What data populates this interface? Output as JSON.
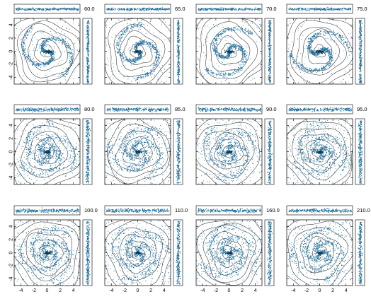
{
  "figure": {
    "panels": [
      {
        "label": "60.0"
      },
      {
        "label": "65.0"
      },
      {
        "label": "70.0"
      },
      {
        "label": "75.0"
      },
      {
        "label": "80.0"
      },
      {
        "label": "85.0"
      },
      {
        "label": "90.0"
      },
      {
        "label": "95.0"
      },
      {
        "label": "100.0"
      },
      {
        "label": "110.0"
      },
      {
        "label": "160.0"
      },
      {
        "label": "210.0"
      }
    ],
    "axis": {
      "x_ticks": [
        -4,
        -2,
        0,
        2,
        4
      ],
      "y_ticks": [
        -4,
        -2,
        0,
        2,
        4
      ],
      "range": [
        -5,
        5
      ]
    },
    "colors": {
      "particles": "#1e6f9c",
      "contours": "#333333",
      "frame": "#000000"
    }
  }
}
